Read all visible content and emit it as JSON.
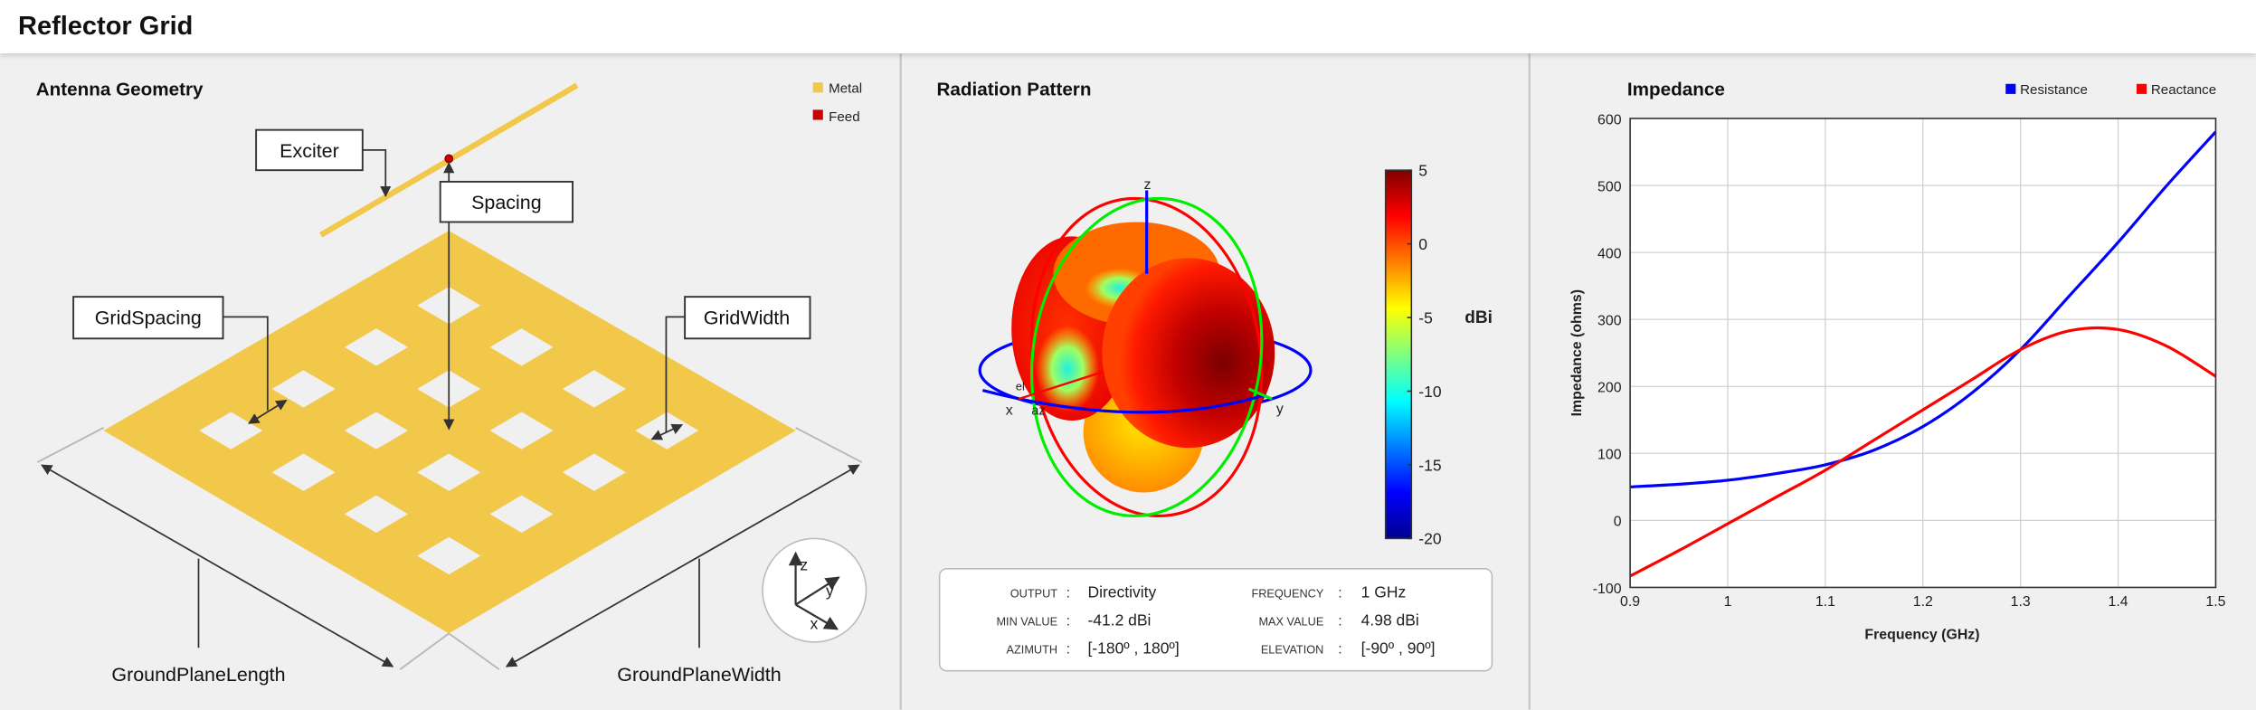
{
  "app_title": "Reflector Grid",
  "colors": {
    "metal": "#f2c84b",
    "feed": "#cc0000",
    "resistance": "#0000ff",
    "reactance": "#ff0000"
  },
  "geometry": {
    "title": "Antenna Geometry",
    "legend": [
      {
        "label": "Metal",
        "color": "#f2c84b"
      },
      {
        "label": "Feed",
        "color": "#cc0000"
      }
    ],
    "labels": {
      "exciter": "Exciter",
      "spacing": "Spacing",
      "grid_spacing": "GridSpacing",
      "grid_width": "GridWidth",
      "ground_plane_length": "GroundPlaneLength",
      "ground_plane_width": "GroundPlaneWidth"
    },
    "axes": {
      "x": "x",
      "y": "y",
      "z": "z"
    }
  },
  "radiation": {
    "title": "Radiation Pattern",
    "colorbar": {
      "unit": "dBi",
      "ticks": [
        "5",
        "0",
        "-5",
        "-10",
        "-15",
        "-20"
      ],
      "range": [
        -20,
        5
      ],
      "colormap": "jet"
    },
    "axis_labels": {
      "x": "x",
      "y": "y",
      "z": "z",
      "az": "az",
      "el": "el"
    },
    "info": [
      {
        "label": "OUTPUT",
        "value": "Directivity"
      },
      {
        "label": "FREQUENCY",
        "value": "1 GHz"
      },
      {
        "label": "MIN VALUE",
        "value": "-41.2 dBi"
      },
      {
        "label": "MAX VALUE",
        "value": "4.98 dBi"
      },
      {
        "label": "AZIMUTH",
        "value": "[-180º , 180º]"
      },
      {
        "label": "ELEVATION",
        "value": "[-90º , 90º]"
      }
    ]
  },
  "chart_data": {
    "type": "line",
    "title": "Impedance",
    "xlabel": "Frequency (GHz)",
    "ylabel": "Impedance (ohms)",
    "xlim": [
      0.9,
      1.5
    ],
    "ylim": [
      -100,
      600
    ],
    "xticks": [
      "0.9",
      "1",
      "1.1",
      "1.2",
      "1.3",
      "1.4",
      "1.5"
    ],
    "yticks": [
      "-100",
      "0",
      "100",
      "200",
      "300",
      "400",
      "500",
      "600"
    ],
    "grid": true,
    "legend_placement": "top-right",
    "x": [
      0.9,
      0.95,
      1.0,
      1.05,
      1.1,
      1.15,
      1.2,
      1.25,
      1.3,
      1.35,
      1.4,
      1.45,
      1.5
    ],
    "series": [
      {
        "name": "Resistance",
        "color": "#0000ff",
        "values": [
          50,
          54,
          60,
          70,
          83,
          105,
          140,
          190,
          255,
          335,
          415,
          500,
          580
        ]
      },
      {
        "name": "Reactance",
        "color": "#ff0000",
        "values": [
          -83,
          -45,
          -5,
          35,
          75,
          120,
          165,
          210,
          255,
          283,
          285,
          260,
          215
        ]
      }
    ]
  }
}
